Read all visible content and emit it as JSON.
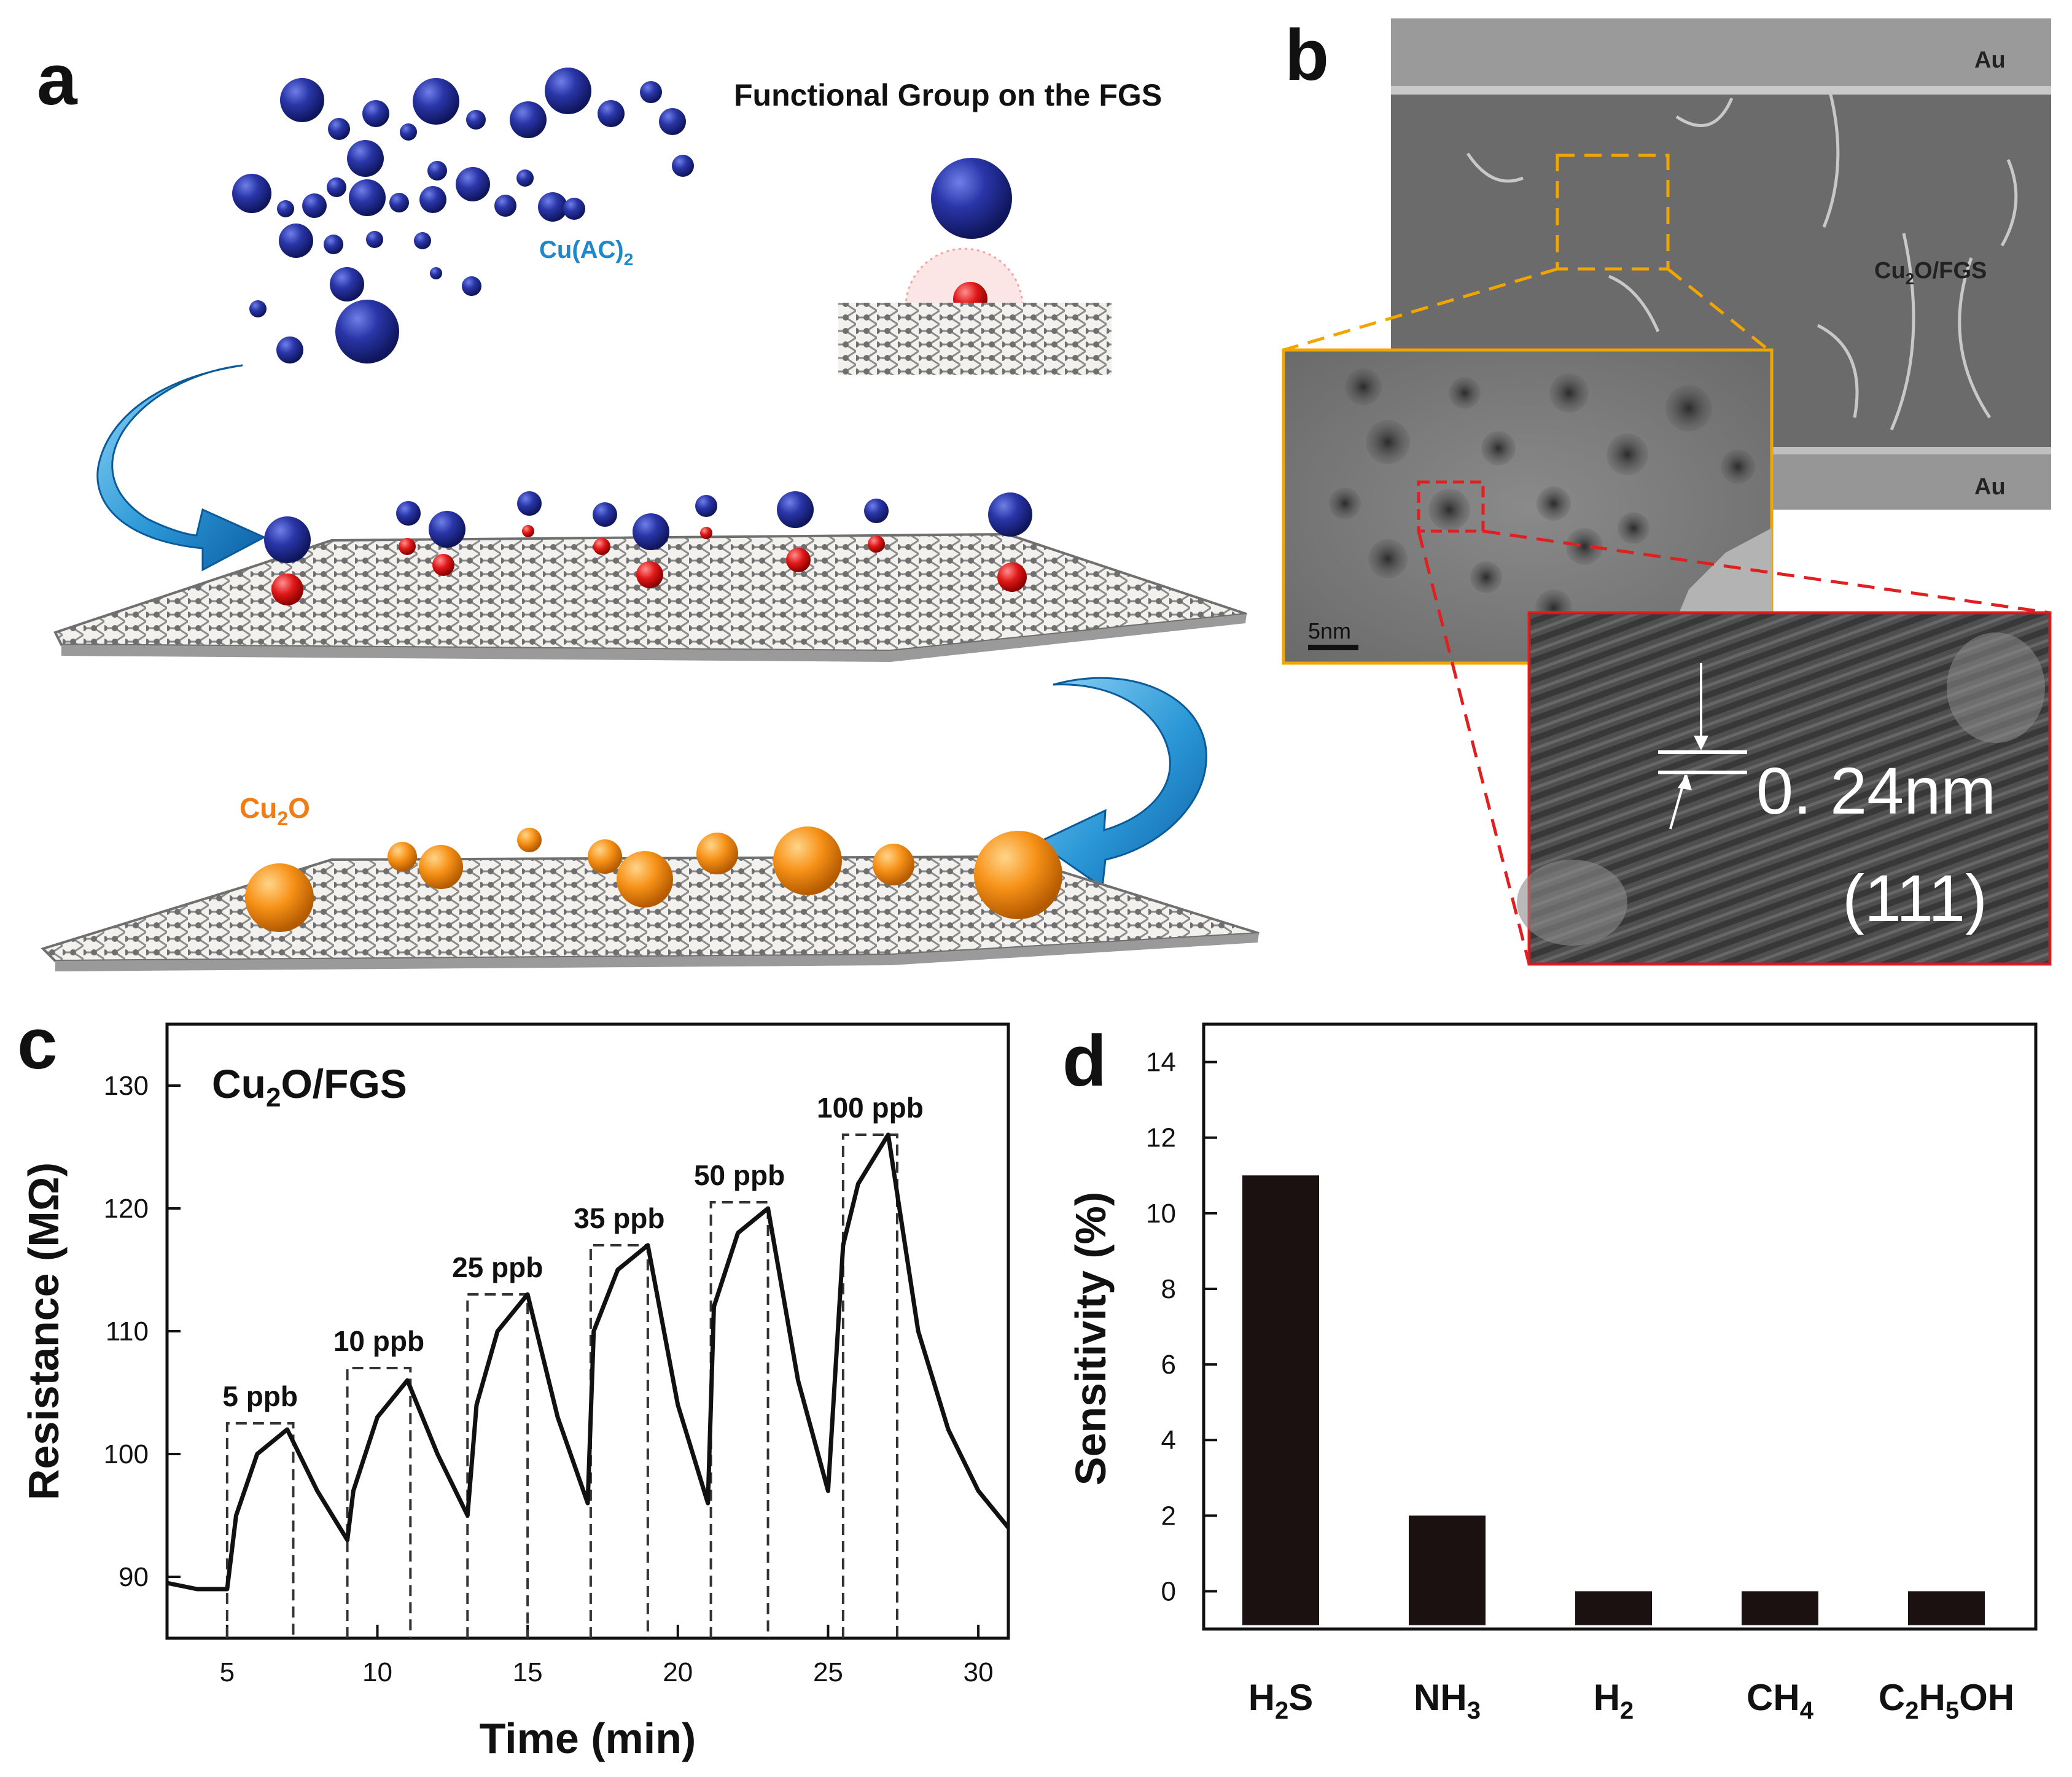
{
  "panels": {
    "a": {
      "letter": "a",
      "title": "Functional Group on the FGS",
      "precursor_label": "Cu(AC)",
      "precursor_sub": "2",
      "product_label": "Cu",
      "product_sub": "2",
      "product_suffix": "O"
    },
    "b": {
      "letter": "b",
      "electrode_top": "Au",
      "electrode_bottom": "Au",
      "film_label": "Cu",
      "film_sub": "2",
      "film_suffix": "O/FGS",
      "scale_bar": "5nm",
      "lattice_spacing": "0. 24nm",
      "lattice_plane": "(111)"
    },
    "c": {
      "letter": "c",
      "sample_label": "Cu",
      "sample_sub": "2",
      "sample_suffix": "O/FGS"
    },
    "d": {
      "letter": "d"
    }
  },
  "chart_data": [
    {
      "type": "line",
      "panel": "c",
      "xlabel": "Time (min)",
      "ylabel": "Resistance (MΩ)",
      "xlim": [
        3,
        31
      ],
      "ylim": [
        85,
        135
      ],
      "xticks": [
        5,
        10,
        15,
        20,
        25,
        30
      ],
      "yticks": [
        90,
        100,
        110,
        120,
        130
      ],
      "series": [
        {
          "x": [
            3,
            4,
            5,
            5.3,
            6,
            7,
            8,
            9,
            9.2,
            10,
            11,
            12,
            13,
            13.3,
            14,
            15,
            16,
            17,
            17.2,
            18,
            19,
            20,
            21,
            21.2,
            22,
            23,
            24,
            25,
            25.5,
            26,
            27,
            28,
            29,
            30,
            31
          ],
          "y": [
            89.5,
            89,
            89,
            95,
            100,
            102,
            97,
            93,
            97,
            103,
            106,
            100,
            95,
            104,
            110,
            113,
            103,
            96,
            110,
            115,
            117,
            104,
            96,
            112,
            118,
            120,
            106,
            97,
            117,
            122,
            126,
            110,
            102,
            97,
            94
          ]
        }
      ],
      "exposures": [
        {
          "label": "5 ppb",
          "start": 5,
          "end": 7.2,
          "level": 102.5
        },
        {
          "label": "10 ppb",
          "start": 9,
          "end": 11.1,
          "level": 107
        },
        {
          "label": "25 ppb",
          "start": 13,
          "end": 15,
          "level": 113
        },
        {
          "label": "35 ppb",
          "start": 17.1,
          "end": 19,
          "level": 117
        },
        {
          "label": "50 ppb",
          "start": 21.1,
          "end": 23,
          "level": 120.5
        },
        {
          "label": "100 ppb",
          "start": 25.5,
          "end": 27.3,
          "level": 126
        }
      ]
    },
    {
      "type": "bar",
      "panel": "d",
      "ylabel": "Sensitivity (%)",
      "ylim": [
        -1,
        15
      ],
      "yticks": [
        0,
        2,
        4,
        6,
        8,
        10,
        12,
        14
      ],
      "categories": [
        {
          "main": "H",
          "sub": "2",
          "rest": "S"
        },
        {
          "main": "NH",
          "sub": "3",
          "rest": ""
        },
        {
          "main": "H",
          "sub": "2",
          "rest": ""
        },
        {
          "main": "CH",
          "sub": "4",
          "rest": ""
        },
        {
          "main": "C",
          "sub": "2",
          "rest": "H",
          "sub2": "5",
          "rest2": "OH"
        }
      ],
      "values": [
        11,
        2,
        0,
        0,
        0
      ],
      "bar_color": "#1a1110"
    }
  ]
}
